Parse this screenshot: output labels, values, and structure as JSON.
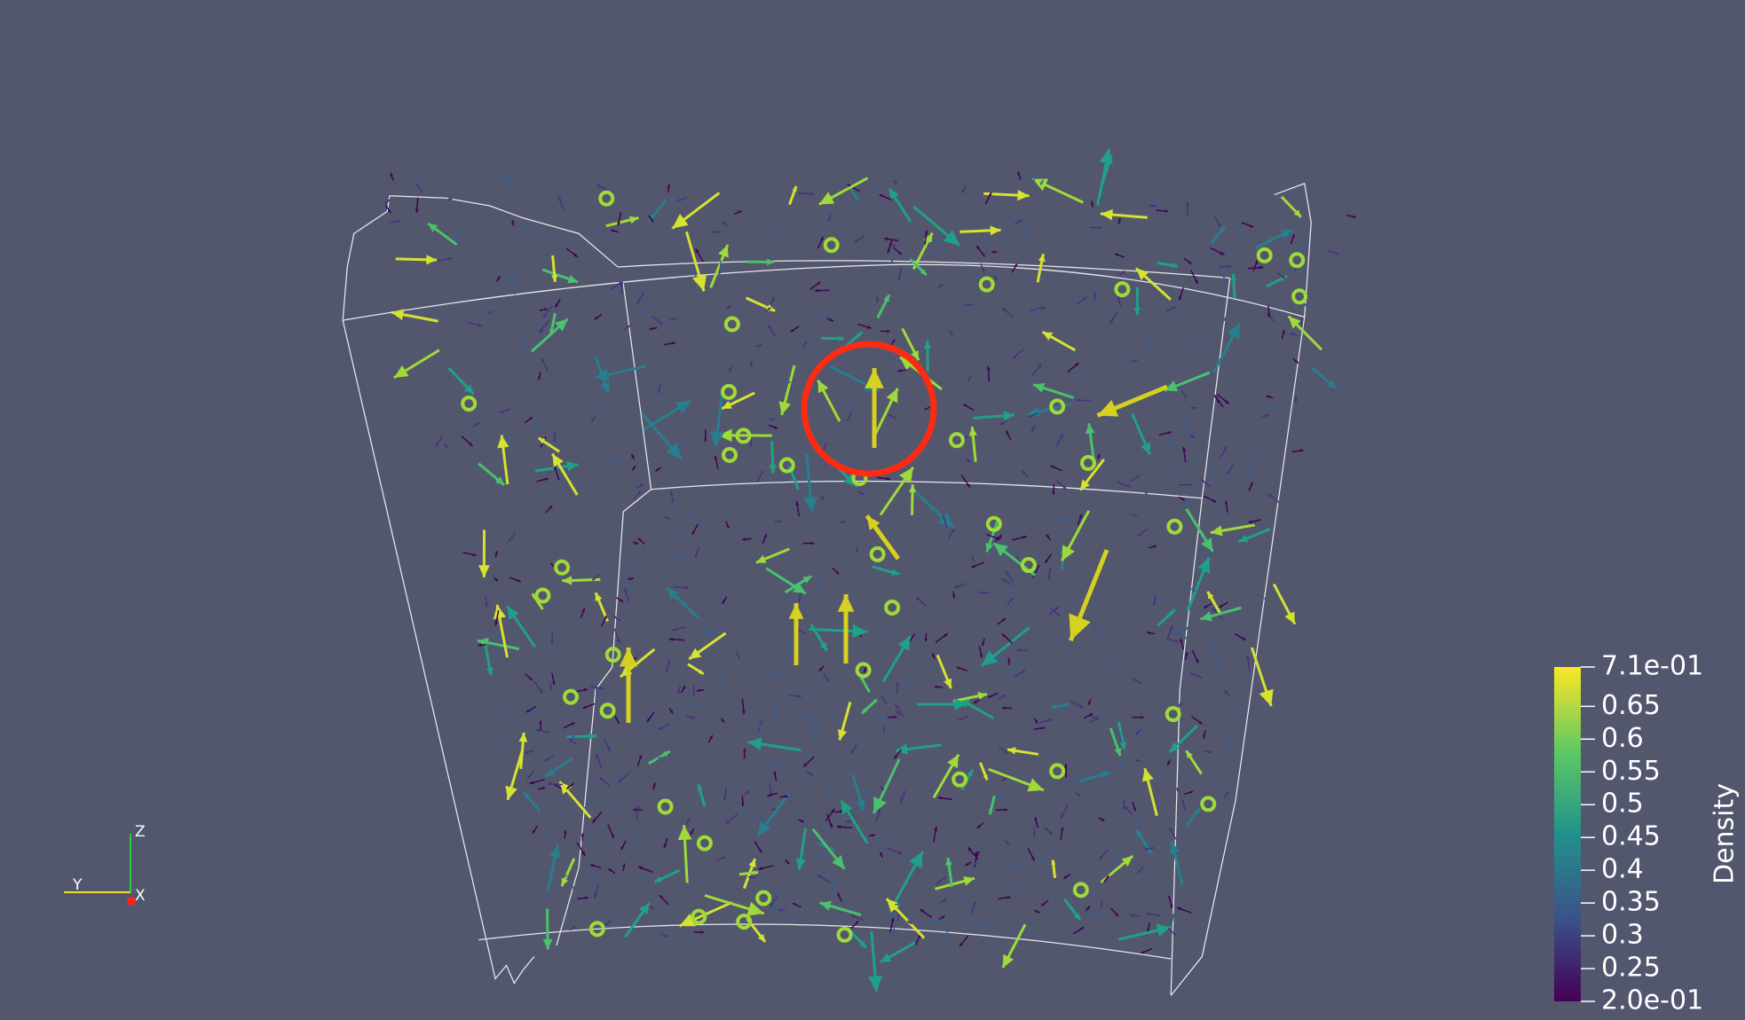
{
  "colorbar": {
    "title": "Density",
    "ticks": [
      {
        "value": 0.71,
        "label": "7.1e-01"
      },
      0.65,
      0.6,
      0.55,
      0.5,
      0.45,
      0.4,
      0.35,
      0.3,
      0.25,
      {
        "value": 0.2,
        "label": "2.0e-01"
      }
    ]
  },
  "orientation_axes": {
    "z": "Z",
    "y": "Y",
    "x": "X"
  }
}
